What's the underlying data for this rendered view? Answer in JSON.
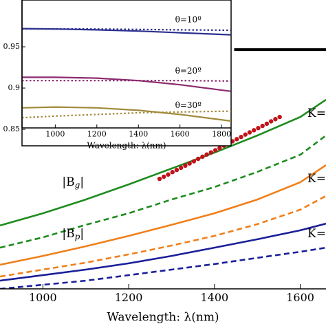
{
  "chart_data": [
    {
      "type": "line",
      "xlabel": "Wavelength: λ(nm)",
      "xlim": [
        900,
        1660
      ],
      "xticks": [
        1000,
        1200,
        1400,
        1600
      ],
      "ylim": [
        0,
        100
      ],
      "annotations": [
        {
          "parts": [
            "K="
          ],
          "at": [
            1660,
            72.9
          ]
        },
        {
          "parts": [
            "K="
          ],
          "at": [
            1660,
            45.7
          ]
        },
        {
          "parts": [
            "K="
          ],
          "at": [
            1660,
            22.9
          ]
        },
        {
          "parts": [
            "|B",
            "g",
            "|"
          ],
          "at": [
            1045,
            44.3
          ]
        },
        {
          "parts": [
            "|B",
            "p",
            "|"
          ],
          "at": [
            1045,
            22.9
          ]
        }
      ],
      "series": [
        {
          "color": "#1e8c1e",
          "style": "solid",
          "x": [
            900,
            1000,
            1100,
            1200,
            1300,
            1400,
            1500,
            1600,
            1660
          ],
          "values": [
            26.3,
            31.4,
            37.1,
            43.4,
            50,
            56.6,
            63.7,
            71.4,
            78.6
          ]
        },
        {
          "color": "#1e8c1e",
          "style": "dashed",
          "x": [
            900,
            1000,
            1100,
            1200,
            1300,
            1400,
            1500,
            1600,
            1660
          ],
          "values": [
            17.1,
            21.4,
            26.6,
            31.4,
            37.1,
            42.3,
            48.6,
            55.7,
            63.7
          ]
        },
        {
          "color": "#f07f1a",
          "style": "solid",
          "x": [
            900,
            1000,
            1100,
            1200,
            1300,
            1400,
            1500,
            1600,
            1660
          ],
          "values": [
            10,
            13.7,
            17.7,
            22,
            26.6,
            31.4,
            37.1,
            44.3,
            51.4
          ]
        },
        {
          "color": "#f07f1a",
          "style": "dashed",
          "x": [
            900,
            1000,
            1100,
            1200,
            1300,
            1400,
            1500,
            1600,
            1660
          ],
          "values": [
            5.1,
            8,
            10.9,
            14.3,
            18,
            22,
            26.9,
            32.9,
            38.6
          ]
        },
        {
          "color": "#1a1f99",
          "style": "solid",
          "x": [
            900,
            1000,
            1100,
            1200,
            1300,
            1400,
            1500,
            1600,
            1660
          ],
          "values": [
            3.4,
            5.7,
            8,
            10.6,
            13.7,
            17.1,
            20.6,
            24.3,
            27.1
          ]
        },
        {
          "color": "#1a1f99",
          "style": "dashed",
          "x": [
            900,
            1000,
            1100,
            1200,
            1300,
            1400,
            1500,
            1600,
            1660
          ],
          "values": [
            0,
            1.7,
            3.4,
            5.7,
            8,
            10.3,
            12.9,
            15.4,
            17.1
          ]
        },
        {
          "color": "#000000",
          "style": "solid",
          "x": [
            1446,
            1660
          ],
          "values": [
            99.4,
            99.4
          ]
        },
        {
          "color": "#c0141a",
          "style": "dots",
          "x": [
            1272,
            1282,
            1292,
            1302,
            1312,
            1322,
            1332,
            1342,
            1352,
            1362,
            1372,
            1382,
            1392,
            1402,
            1412,
            1422,
            1432,
            1442,
            1452,
            1462,
            1472,
            1482,
            1492,
            1502,
            1512,
            1522,
            1532,
            1542,
            1552
          ],
          "values": [
            45.7,
            46.6,
            47.5,
            48.5,
            49.4,
            50.3,
            51.2,
            52.1,
            53.0,
            54.0,
            54.9,
            55.8,
            56.7,
            57.6,
            58.5,
            59.5,
            60.4,
            61.3,
            62.2,
            63.1,
            64.1,
            65.0,
            65.9,
            66.8,
            67.7,
            68.6,
            69.6,
            70.5,
            71.4
          ]
        }
      ]
    },
    {
      "type": "line",
      "xlabel": "Wavelength: λ(nm)",
      "xlim": [
        840,
        1846
      ],
      "xticks": [
        1000,
        1200,
        1400,
        1600,
        1800
      ],
      "ylim": [
        0.8517,
        1.0067
      ],
      "yticks": [
        0.85,
        0.9,
        0.95
      ],
      "annotations": [
        {
          "parts": [
            "θ=10º"
          ],
          "at": [
            1640,
            0.983
          ]
        },
        {
          "parts": [
            "θ=20º"
          ],
          "at": [
            1640,
            0.921
          ]
        },
        {
          "parts": [
            "θ=30º"
          ],
          "at": [
            1640,
            0.879
          ]
        }
      ],
      "series": [
        {
          "color": "#2b2f8f",
          "style": "solid",
          "x": [
            840,
            1000,
            1200,
            1400,
            1600,
            1846
          ],
          "values": [
            0.972,
            0.9715,
            0.9705,
            0.969,
            0.967,
            0.9645
          ]
        },
        {
          "color": "#2b2f8f",
          "style": "dotted",
          "x": [
            840,
            1000,
            1200,
            1400,
            1600,
            1846
          ],
          "values": [
            0.9717,
            0.9717,
            0.9715,
            0.971,
            0.9705,
            0.97
          ]
        },
        {
          "color": "#8b2a6e",
          "style": "solid",
          "x": [
            840,
            1000,
            1200,
            1400,
            1600,
            1846
          ],
          "values": [
            0.913,
            0.913,
            0.912,
            0.909,
            0.904,
            0.896
          ]
        },
        {
          "color": "#8b2a6e",
          "style": "dotted",
          "x": [
            840,
            1000,
            1200,
            1400,
            1600,
            1846
          ],
          "values": [
            0.909,
            0.909,
            0.909,
            0.909,
            0.909,
            0.9085
          ]
        },
        {
          "color": "#a08a3a",
          "style": "solid",
          "x": [
            840,
            1000,
            1200,
            1400,
            1600,
            1846
          ],
          "values": [
            0.876,
            0.877,
            0.876,
            0.873,
            0.868,
            0.86
          ]
        },
        {
          "color": "#a08a3a",
          "style": "dotted",
          "x": [
            840,
            1000,
            1200,
            1400,
            1600,
            1846
          ],
          "values": [
            0.864,
            0.866,
            0.868,
            0.87,
            0.871,
            0.872
          ]
        }
      ]
    }
  ]
}
